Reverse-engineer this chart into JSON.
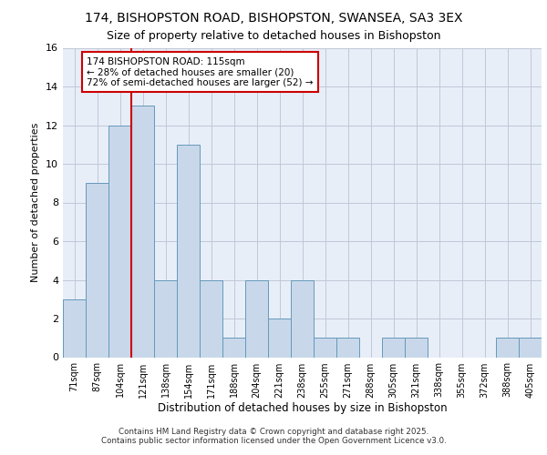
{
  "title_line1": "174, BISHOPSTON ROAD, BISHOPSTON, SWANSEA, SA3 3EX",
  "title_line2": "Size of property relative to detached houses in Bishopston",
  "xlabel": "Distribution of detached houses by size in Bishopston",
  "ylabel": "Number of detached properties",
  "categories": [
    "71sqm",
    "87sqm",
    "104sqm",
    "121sqm",
    "138sqm",
    "154sqm",
    "171sqm",
    "188sqm",
    "204sqm",
    "221sqm",
    "238sqm",
    "255sqm",
    "271sqm",
    "288sqm",
    "305sqm",
    "321sqm",
    "338sqm",
    "355sqm",
    "372sqm",
    "388sqm",
    "405sqm"
  ],
  "values": [
    3,
    9,
    12,
    13,
    4,
    11,
    4,
    1,
    4,
    2,
    4,
    1,
    1,
    0,
    1,
    1,
    0,
    0,
    0,
    1,
    1
  ],
  "bar_color": "#c8d8ea",
  "bar_edge_color": "#6699bb",
  "grid_color": "#c0c8d8",
  "bg_color": "#e8eef8",
  "annotation_text": "174 BISHOPSTON ROAD: 115sqm\n← 28% of detached houses are smaller (20)\n72% of semi-detached houses are larger (52) →",
  "annotation_box_color": "#ffffff",
  "annotation_box_edge": "#cc0000",
  "vline_x_index": 2.5,
  "vline_color": "#cc0000",
  "ylim": [
    0,
    16
  ],
  "yticks": [
    0,
    2,
    4,
    6,
    8,
    10,
    12,
    14,
    16
  ],
  "footer_line1": "Contains HM Land Registry data © Crown copyright and database right 2025.",
  "footer_line2": "Contains public sector information licensed under the Open Government Licence v3.0."
}
